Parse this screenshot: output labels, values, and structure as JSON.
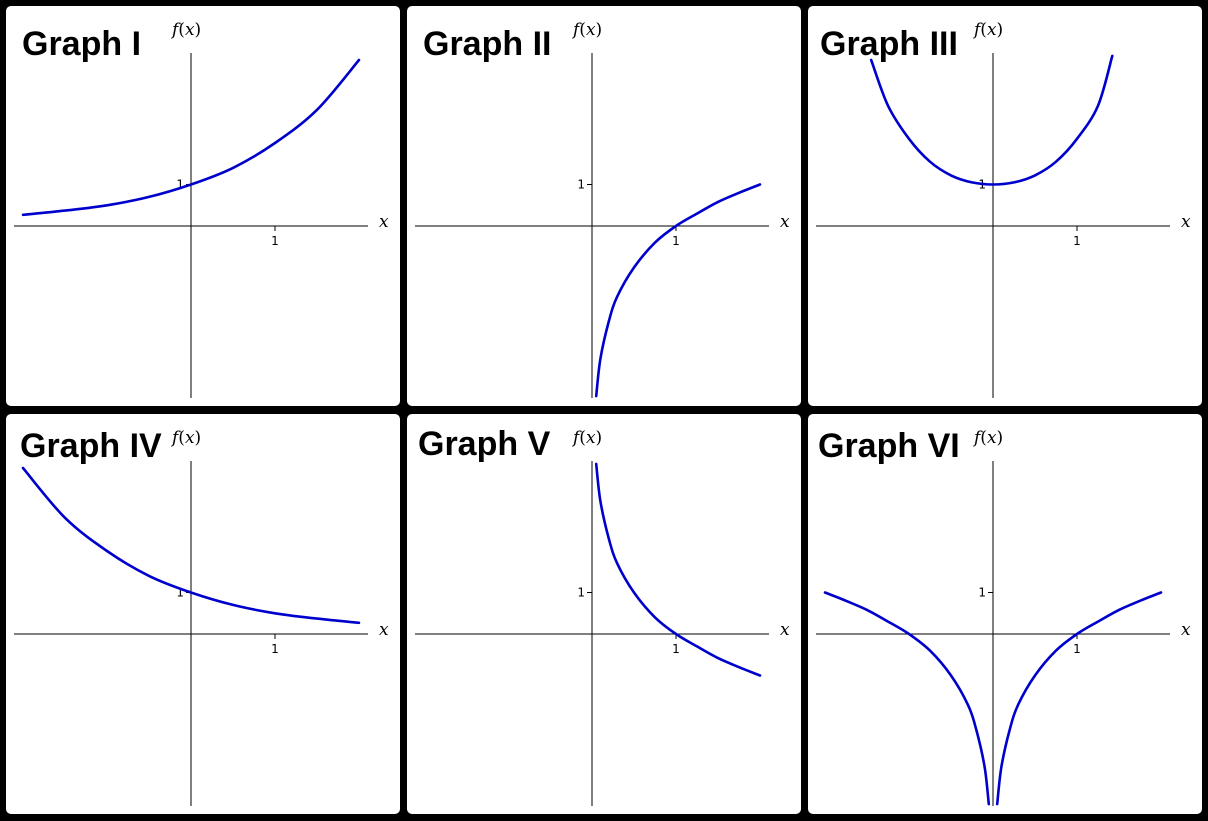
{
  "colors": {
    "background": "#000000",
    "panel": "#ffffff",
    "axis": "#000000",
    "curve": "#0000cc"
  },
  "chart_data": [
    {
      "type": "line",
      "title": "Graph I",
      "xlabel": "x",
      "ylabel": "f(x)",
      "xlim": [
        -2.1,
        2.1
      ],
      "ylim": [
        -4.1,
        4.1
      ],
      "xticks": [
        {
          "value": 1,
          "label": "1"
        }
      ],
      "yticks": [
        {
          "value": 1,
          "label": "1"
        }
      ],
      "grid": false,
      "series": [
        {
          "x": [
            -2.0,
            -1.5,
            -1.0,
            -0.5,
            0.0,
            0.5,
            1.0,
            1.5,
            2.0
          ],
          "y": [
            0.27,
            0.37,
            0.5,
            0.7,
            1.0,
            1.4,
            2.0,
            2.8,
            4.0
          ]
        }
      ]
    },
    {
      "type": "line",
      "title": "Graph II",
      "xlabel": "x",
      "ylabel": "f(x)",
      "xlim": [
        -2.1,
        2.1
      ],
      "ylim": [
        -4.1,
        4.1
      ],
      "xticks": [
        {
          "value": 1,
          "label": "1"
        }
      ],
      "yticks": [
        {
          "value": 1,
          "label": "1"
        }
      ],
      "grid": false,
      "series": [
        {
          "x": [
            0.05,
            0.1,
            0.2,
            0.3,
            0.5,
            0.75,
            1.0,
            1.25,
            1.5,
            1.75,
            2.0
          ],
          "y": [
            -4.1,
            -3.2,
            -2.3,
            -1.7,
            -1.0,
            -0.4,
            0.0,
            0.3,
            0.58,
            0.8,
            1.0
          ]
        }
      ]
    },
    {
      "type": "line",
      "title": "Graph III",
      "xlabel": "x",
      "ylabel": "f(x)",
      "xlim": [
        -2.1,
        2.1
      ],
      "ylim": [
        -4.1,
        4.1
      ],
      "xticks": [
        {
          "value": 1,
          "label": "1"
        }
      ],
      "yticks": [
        {
          "value": 1,
          "label": "1"
        }
      ],
      "grid": false,
      "series": [
        {
          "x": [
            -1.45,
            -1.25,
            -1.0,
            -0.75,
            -0.5,
            -0.25,
            0.0,
            0.25,
            0.5,
            0.75,
            1.0,
            1.25,
            1.42
          ],
          "y": [
            4.0,
            2.9,
            2.1,
            1.55,
            1.22,
            1.05,
            1.0,
            1.05,
            1.22,
            1.55,
            2.1,
            2.9,
            4.1
          ]
        }
      ]
    },
    {
      "type": "line",
      "title": "Graph IV",
      "xlabel": "x",
      "ylabel": "f(x)",
      "xlim": [
        -2.1,
        2.1
      ],
      "ylim": [
        -4.1,
        4.1
      ],
      "xticks": [
        {
          "value": 1,
          "label": "1"
        }
      ],
      "yticks": [
        {
          "value": 1,
          "label": "1"
        }
      ],
      "grid": false,
      "series": [
        {
          "x": [
            -2.0,
            -1.5,
            -1.0,
            -0.5,
            0.0,
            0.5,
            1.0,
            1.5,
            2.0
          ],
          "y": [
            4.0,
            2.8,
            2.0,
            1.4,
            1.0,
            0.7,
            0.5,
            0.37,
            0.27
          ]
        }
      ]
    },
    {
      "type": "line",
      "title": "Graph V",
      "xlabel": "x",
      "ylabel": "f(x)",
      "xlim": [
        -2.1,
        2.1
      ],
      "ylim": [
        -4.1,
        4.1
      ],
      "xticks": [
        {
          "value": 1,
          "label": "1"
        }
      ],
      "yticks": [
        {
          "value": 1,
          "label": "1"
        }
      ],
      "grid": false,
      "series": [
        {
          "x": [
            0.05,
            0.1,
            0.2,
            0.3,
            0.5,
            0.75,
            1.0,
            1.25,
            1.5,
            1.75,
            2.0
          ],
          "y": [
            4.1,
            3.2,
            2.3,
            1.7,
            1.0,
            0.4,
            0.0,
            -0.3,
            -0.58,
            -0.8,
            -1.0
          ]
        }
      ]
    },
    {
      "type": "line",
      "title": "Graph VI",
      "xlabel": "x",
      "ylabel": "f(x)",
      "xlim": [
        -2.1,
        2.1
      ],
      "ylim": [
        -4.1,
        4.1
      ],
      "xticks": [
        {
          "value": 1,
          "label": "1"
        }
      ],
      "yticks": [
        {
          "value": 1,
          "label": "1"
        }
      ],
      "grid": false,
      "series": [
        {
          "x": [
            -2.0,
            -1.75,
            -1.5,
            -1.25,
            -1.0,
            -0.75,
            -0.5,
            -0.3,
            -0.2,
            -0.1,
            -0.05
          ],
          "y": [
            1.0,
            0.8,
            0.58,
            0.3,
            0.0,
            -0.4,
            -1.0,
            -1.7,
            -2.3,
            -3.2,
            -4.1
          ]
        },
        {
          "x": [
            0.05,
            0.1,
            0.2,
            0.3,
            0.5,
            0.75,
            1.0,
            1.25,
            1.5,
            1.75,
            2.0
          ],
          "y": [
            -4.1,
            -3.2,
            -2.3,
            -1.7,
            -1.0,
            -0.4,
            0.0,
            0.3,
            0.58,
            0.8,
            1.0
          ]
        }
      ]
    }
  ]
}
